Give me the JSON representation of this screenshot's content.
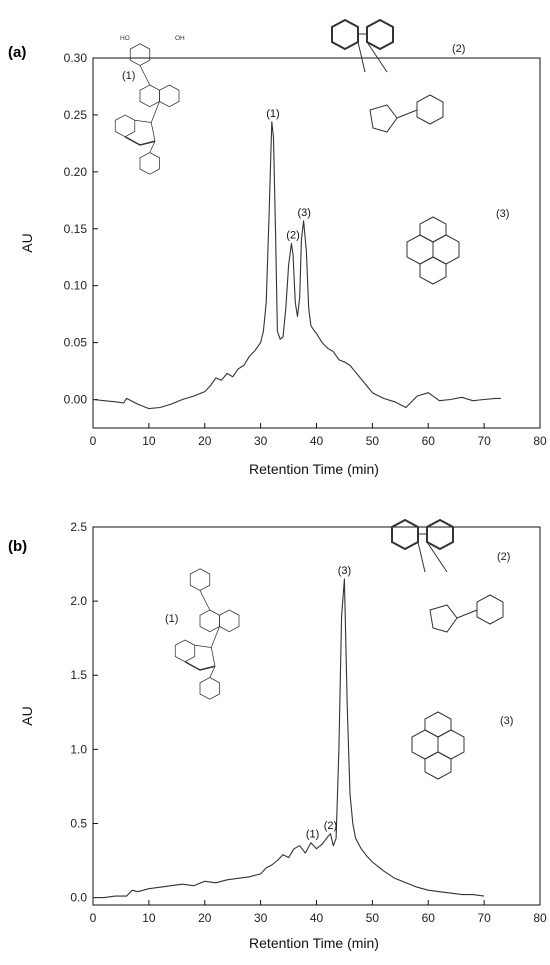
{
  "chart_data": [
    {
      "type": "line",
      "panel_label": "(a)",
      "xlabel": "Retention Time (min)",
      "ylabel": "AU",
      "xlim": [
        0,
        80
      ],
      "ylim": [
        -0.025,
        0.3
      ],
      "x_ticks": [
        0,
        10,
        20,
        30,
        40,
        50,
        60,
        70,
        80
      ],
      "y_ticks": [
        0.0,
        0.05,
        0.1,
        0.15,
        0.2,
        0.25,
        0.3
      ],
      "y_tick_labels": [
        "0.00",
        "0.05",
        "0.10",
        "0.15",
        "0.20",
        "0.25",
        "0.30"
      ],
      "grid": false,
      "series": [
        {
          "x": [
            0,
            2,
            4,
            5.5,
            6,
            8,
            10,
            12,
            14,
            16,
            18,
            20,
            21,
            22,
            23,
            24,
            25,
            26,
            27,
            28,
            29,
            30,
            30.5,
            31,
            31.5,
            32,
            32.3,
            32.7,
            33,
            33.5,
            34,
            34.5,
            35,
            35.5,
            35.8,
            36.2,
            36.6,
            37,
            37.3,
            37.7,
            38.2,
            38.6,
            39,
            39.5,
            40,
            41,
            42,
            43,
            44,
            45,
            46,
            47,
            48,
            49,
            50,
            52,
            54,
            56,
            58,
            60,
            62,
            64,
            66,
            68,
            70,
            72,
            73
          ],
          "y": [
            0.0,
            -0.001,
            -0.002,
            -0.003,
            0.001,
            -0.004,
            -0.008,
            -0.007,
            -0.004,
            0.0,
            0.003,
            0.007,
            0.012,
            0.019,
            0.017,
            0.023,
            0.02,
            0.027,
            0.03,
            0.038,
            0.043,
            0.05,
            0.06,
            0.085,
            0.16,
            0.244,
            0.23,
            0.14,
            0.06,
            0.053,
            0.055,
            0.08,
            0.118,
            0.137,
            0.128,
            0.085,
            0.073,
            0.09,
            0.14,
            0.157,
            0.13,
            0.08,
            0.065,
            0.061,
            0.058,
            0.05,
            0.045,
            0.042,
            0.035,
            0.033,
            0.03,
            0.024,
            0.018,
            0.012,
            0.006,
            0.001,
            -0.002,
            -0.007,
            0.003,
            0.006,
            -0.001,
            0.0,
            0.002,
            -0.001,
            0.0,
            0.001,
            0.001
          ]
        }
      ],
      "peak_labels": [
        {
          "text": "(1)",
          "x": 32.2,
          "y": 0.244
        },
        {
          "text": "(2)",
          "x": 35.8,
          "y": 0.137
        },
        {
          "text": "(3)",
          "x": 37.8,
          "y": 0.157
        }
      ],
      "structure_labels": [
        "(1)",
        "(2)",
        "(3)"
      ]
    },
    {
      "type": "line",
      "panel_label": "(b)",
      "xlabel": "Retention Time (min)",
      "ylabel": "AU",
      "xlim": [
        0,
        80
      ],
      "ylim": [
        -0.05,
        2.5
      ],
      "x_ticks": [
        0,
        10,
        20,
        30,
        40,
        50,
        60,
        70,
        80
      ],
      "y_ticks": [
        0.0,
        0.5,
        1.0,
        1.5,
        2.0,
        2.5
      ],
      "y_tick_labels": [
        "0.0",
        "0.5",
        "1.0",
        "1.5",
        "2.0",
        "2.5"
      ],
      "grid": false,
      "series": [
        {
          "x": [
            0,
            2,
            4,
            6,
            7,
            8,
            10,
            12,
            14,
            16,
            18,
            20,
            22,
            24,
            26,
            28,
            30,
            31,
            32,
            33,
            34,
            35,
            36,
            37,
            38,
            39,
            40,
            41,
            42,
            42.5,
            43,
            43.5,
            44,
            44.5,
            45,
            45.5,
            46,
            46.5,
            47,
            48,
            49,
            50,
            52,
            54,
            56,
            58,
            60,
            62,
            64,
            66,
            68,
            70
          ],
          "y": [
            0.0,
            0.0,
            0.01,
            0.01,
            0.05,
            0.04,
            0.06,
            0.07,
            0.08,
            0.09,
            0.08,
            0.11,
            0.1,
            0.12,
            0.13,
            0.14,
            0.16,
            0.2,
            0.22,
            0.25,
            0.29,
            0.27,
            0.33,
            0.35,
            0.3,
            0.37,
            0.33,
            0.36,
            0.41,
            0.43,
            0.35,
            0.4,
            1.0,
            1.9,
            2.15,
            1.3,
            0.7,
            0.5,
            0.4,
            0.33,
            0.28,
            0.24,
            0.18,
            0.13,
            0.1,
            0.07,
            0.05,
            0.04,
            0.03,
            0.02,
            0.02,
            0.01
          ]
        }
      ],
      "peak_labels": [
        {
          "text": "(1)",
          "x": 39.3,
          "y": 0.37
        },
        {
          "text": "(2)",
          "x": 42.5,
          "y": 0.43
        },
        {
          "text": "(3)",
          "x": 45.0,
          "y": 2.15
        }
      ],
      "structure_labels": [
        "(1)",
        "(2)",
        "(3)"
      ]
    }
  ]
}
